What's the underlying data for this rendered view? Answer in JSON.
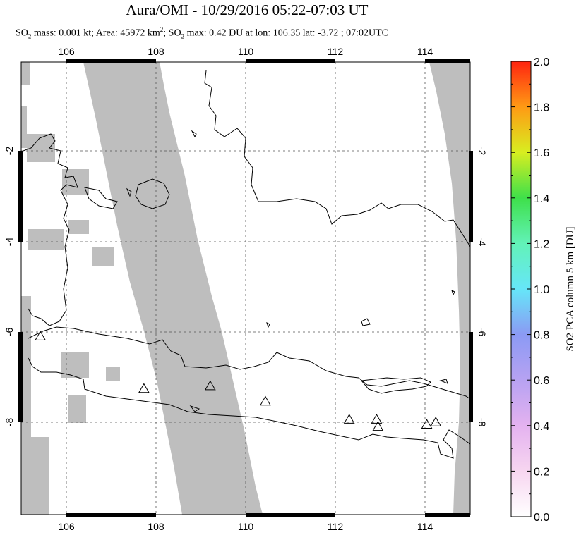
{
  "header": {
    "title": "Aura/OMI - 10/29/2016 05:22-07:03 UT",
    "subtitle_parts": {
      "so2_a": "SO",
      "sub2_a": "2",
      "mass_area": " mass: 0.001 kt; Area: 45972 km",
      "sup2": "2",
      "sep": "; SO",
      "sub2_b": "2",
      "rest": " max: 0.42 DU at lon: 106.35 lat: -3.72 ; 07:02UTC"
    }
  },
  "map": {
    "lon_ticks": [
      "106",
      "108",
      "110",
      "112",
      "114"
    ],
    "lat_ticks": [
      "-2",
      "-4",
      "-6",
      "-8"
    ],
    "lon_range": [
      105,
      115
    ],
    "lat_range": [
      -10.2,
      0.0
    ],
    "volcano_icon": "triangle-outline",
    "volcanoes": [
      {
        "lon": 105.42,
        "lat": -6.1
      },
      {
        "lon": 107.73,
        "lat": -7.26
      },
      {
        "lon": 109.21,
        "lat": -7.2
      },
      {
        "lon": 110.44,
        "lat": -7.54
      },
      {
        "lon": 112.31,
        "lat": -7.94
      },
      {
        "lon": 112.92,
        "lat": -7.94
      },
      {
        "lon": 112.95,
        "lat": -8.1
      },
      {
        "lon": 114.04,
        "lat": -8.05
      },
      {
        "lon": 114.24,
        "lat": -8.0
      }
    ],
    "colors": {
      "nodata": "#bebebe",
      "land_line": "#000000",
      "grid": "#555555"
    }
  },
  "colorbar": {
    "label": "SO2 PCA column 5 km [DU]",
    "ticks": [
      "0.0",
      "0.2",
      "0.4",
      "0.6",
      "0.8",
      "1.0",
      "1.2",
      "1.4",
      "1.6",
      "1.8",
      "2.0"
    ],
    "range": [
      0.0,
      2.0
    ]
  }
}
